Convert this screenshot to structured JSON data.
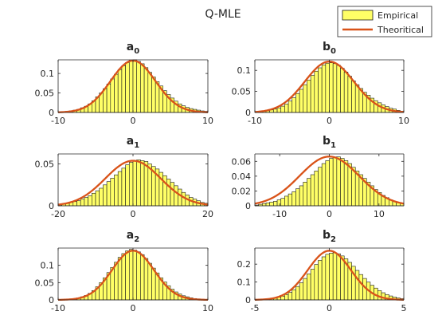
{
  "figure_title": "Q-MLE",
  "legend": {
    "empirical": "Empirical",
    "theoretical": "Theoritical"
  },
  "colors": {
    "bar_fill": "#ffff66",
    "bar_edge": "#1a1a1a",
    "curve": "#d95319",
    "axis": "#262626"
  },
  "chart_data": [
    {
      "type": "histogram",
      "title_main": "a",
      "title_sub": "0",
      "xlim": [
        -10,
        10
      ],
      "ylim": [
        0,
        0.135
      ],
      "xticks": [
        -10,
        0,
        10
      ],
      "xtick_labels": [
        "-10",
        "0",
        "10"
      ],
      "yticks": [
        0,
        0.05,
        0.1
      ],
      "ytick_labels": [
        "0",
        "0.05",
        "0.1"
      ],
      "curve": {
        "mean": 0,
        "sd": 3.0
      },
      "bin_edges": [
        -10,
        10
      ],
      "bin_count": 40,
      "values": [
        0.001,
        0.002,
        0.003,
        0.004,
        0.006,
        0.008,
        0.012,
        0.016,
        0.022,
        0.03,
        0.04,
        0.05,
        0.061,
        0.073,
        0.086,
        0.098,
        0.11,
        0.12,
        0.128,
        0.134,
        0.135,
        0.131,
        0.125,
        0.115,
        0.103,
        0.091,
        0.079,
        0.068,
        0.056,
        0.046,
        0.037,
        0.029,
        0.022,
        0.017,
        0.013,
        0.01,
        0.008,
        0.006,
        0.004,
        0.003
      ]
    },
    {
      "type": "histogram",
      "title_main": "b",
      "title_sub": "0",
      "xlim": [
        -10,
        10
      ],
      "ylim": [
        0,
        0.125
      ],
      "xticks": [
        -10,
        0,
        10
      ],
      "xtick_labels": [
        "-10",
        "0",
        "10"
      ],
      "yticks": [
        0,
        0.05,
        0.1
      ],
      "ytick_labels": [
        "0",
        "0.05",
        "0.1"
      ],
      "curve": {
        "mean": 0,
        "sd": 3.3
      },
      "bin_edges": [
        -10,
        10
      ],
      "bin_count": 40,
      "values": [
        0.001,
        0.002,
        0.003,
        0.004,
        0.006,
        0.008,
        0.011,
        0.015,
        0.02,
        0.027,
        0.035,
        0.045,
        0.055,
        0.066,
        0.077,
        0.088,
        0.098,
        0.106,
        0.113,
        0.117,
        0.118,
        0.116,
        0.112,
        0.105,
        0.096,
        0.086,
        0.075,
        0.066,
        0.057,
        0.048,
        0.041,
        0.034,
        0.028,
        0.023,
        0.018,
        0.014,
        0.01,
        0.008,
        0.005,
        0.003
      ]
    },
    {
      "type": "histogram",
      "title_main": "a",
      "title_sub": "1",
      "xlim": [
        -20,
        20
      ],
      "ylim": [
        0,
        0.062
      ],
      "xticks": [
        -20,
        0,
        20
      ],
      "xtick_labels": [
        "-20",
        "0",
        "20"
      ],
      "yticks": [
        0,
        0.05
      ],
      "ytick_labels": [
        "0",
        "0.05"
      ],
      "curve": {
        "mean": 0,
        "sd": 7.4
      },
      "bin_edges": [
        -20,
        20
      ],
      "bin_count": 40,
      "values": [
        0.001,
        0.002,
        0.003,
        0.004,
        0.005,
        0.006,
        0.008,
        0.01,
        0.012,
        0.015,
        0.018,
        0.021,
        0.025,
        0.029,
        0.033,
        0.037,
        0.041,
        0.045,
        0.049,
        0.052,
        0.054,
        0.055,
        0.054,
        0.053,
        0.05,
        0.047,
        0.044,
        0.04,
        0.036,
        0.032,
        0.028,
        0.024,
        0.02,
        0.016,
        0.013,
        0.01,
        0.008,
        0.006,
        0.004,
        0.003
      ]
    },
    {
      "type": "histogram",
      "title_main": "b",
      "title_sub": "1",
      "xlim": [
        -15,
        15
      ],
      "ylim": [
        0,
        0.07
      ],
      "xticks": [
        -10,
        0,
        10
      ],
      "xtick_labels": [
        "-10",
        "0",
        "10"
      ],
      "yticks": [
        0,
        0.02,
        0.04,
        0.06
      ],
      "ytick_labels": [
        "0",
        "0.02",
        "0.04",
        "0.06"
      ],
      "curve": {
        "mean": 0,
        "sd": 6.0
      },
      "bin_edges": [
        -15,
        15
      ],
      "bin_count": 40,
      "values": [
        0.001,
        0.002,
        0.003,
        0.004,
        0.005,
        0.006,
        0.008,
        0.01,
        0.013,
        0.016,
        0.019,
        0.023,
        0.027,
        0.032,
        0.037,
        0.042,
        0.047,
        0.052,
        0.057,
        0.061,
        0.064,
        0.066,
        0.066,
        0.064,
        0.061,
        0.057,
        0.052,
        0.047,
        0.042,
        0.037,
        0.032,
        0.027,
        0.022,
        0.018,
        0.014,
        0.011,
        0.008,
        0.006,
        0.004,
        0.003
      ]
    },
    {
      "type": "histogram",
      "title_main": "a",
      "title_sub": "2",
      "xlim": [
        -10,
        10
      ],
      "ylim": [
        0,
        0.15
      ],
      "xticks": [
        -10,
        0,
        10
      ],
      "xtick_labels": [
        "-10",
        "0",
        "10"
      ],
      "yticks": [
        0,
        0.05,
        0.1
      ],
      "ytick_labels": [
        "0",
        "0.05",
        "0.1"
      ],
      "curve": {
        "mean": 0,
        "sd": 2.8
      },
      "bin_edges": [
        -10,
        10
      ],
      "bin_count": 40,
      "values": [
        0.0,
        0.001,
        0.002,
        0.003,
        0.004,
        0.006,
        0.009,
        0.013,
        0.019,
        0.027,
        0.038,
        0.05,
        0.064,
        0.079,
        0.094,
        0.109,
        0.123,
        0.134,
        0.142,
        0.146,
        0.144,
        0.139,
        0.131,
        0.12,
        0.106,
        0.092,
        0.078,
        0.064,
        0.052,
        0.041,
        0.031,
        0.023,
        0.017,
        0.012,
        0.009,
        0.006,
        0.004,
        0.003,
        0.002,
        0.001
      ]
    },
    {
      "type": "histogram",
      "title_main": "b",
      "title_sub": "2",
      "xlim": [
        -5,
        5
      ],
      "ylim": [
        0,
        0.29
      ],
      "xticks": [
        -5,
        0,
        5
      ],
      "xtick_labels": [
        "-5",
        "0",
        "5"
      ],
      "yticks": [
        0,
        0.1,
        0.2
      ],
      "ytick_labels": [
        "0",
        "0.1",
        "0.2"
      ],
      "curve": {
        "mean": 0,
        "sd": 1.45
      },
      "bin_edges": [
        -5,
        5
      ],
      "bin_count": 40,
      "values": [
        0.001,
        0.002,
        0.003,
        0.005,
        0.007,
        0.01,
        0.015,
        0.021,
        0.03,
        0.042,
        0.057,
        0.075,
        0.096,
        0.12,
        0.146,
        0.172,
        0.198,
        0.221,
        0.241,
        0.255,
        0.262,
        0.264,
        0.258,
        0.246,
        0.23,
        0.21,
        0.188,
        0.165,
        0.142,
        0.12,
        0.1,
        0.082,
        0.066,
        0.052,
        0.04,
        0.03,
        0.022,
        0.016,
        0.011,
        0.007
      ]
    }
  ]
}
